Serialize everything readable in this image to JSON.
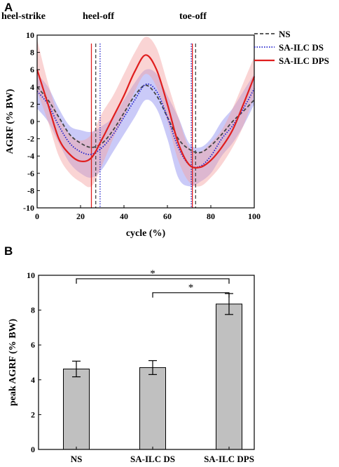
{
  "chart_data": [
    {
      "panel_label": "A",
      "type": "line",
      "xlabel": "cycle (%)",
      "ylabel": "AGRF (% BW)",
      "xlim": [
        0,
        100
      ],
      "ylim": [
        -10,
        10
      ],
      "xticks": [
        0,
        20,
        40,
        60,
        80,
        100
      ],
      "yticks": [
        -10,
        -8,
        -6,
        -4,
        -2,
        0,
        2,
        4,
        6,
        8,
        10
      ],
      "x": [
        0,
        5,
        10,
        15,
        20,
        25,
        30,
        35,
        40,
        45,
        50,
        55,
        60,
        65,
        70,
        75,
        80,
        85,
        90,
        95,
        100
      ],
      "series": [
        {
          "name": "NS",
          "color": "#444444",
          "style": "dashed",
          "values": [
            4.0,
            2.5,
            0.5,
            -1.5,
            -2.5,
            -3.0,
            -2.5,
            -1.0,
            1.0,
            3.0,
            4.2,
            3.0,
            0.5,
            -2.0,
            -3.2,
            -3.6,
            -2.8,
            -1.5,
            0.0,
            1.2,
            2.5
          ],
          "band_lower": [
            2.5,
            1.0,
            -1.0,
            -3.0,
            -4.2,
            -4.8,
            -4.0,
            -2.5,
            -0.5,
            1.5,
            2.8,
            1.5,
            -1.0,
            -3.5,
            -4.8,
            -5.2,
            -4.4,
            -3.0,
            -1.5,
            -0.2,
            1.0
          ],
          "band_upper": [
            5.5,
            4.0,
            2.0,
            0.0,
            -0.8,
            -1.2,
            -1.0,
            0.5,
            2.5,
            4.5,
            5.6,
            4.5,
            2.0,
            -0.5,
            -1.6,
            -2.0,
            -1.2,
            0.0,
            1.5,
            2.6,
            4.0
          ]
        },
        {
          "name": "SA-ILC DS",
          "color": "#2222cc",
          "style": "dotted",
          "band_color": "#8a8af0",
          "values": [
            3.5,
            2.0,
            -0.5,
            -2.5,
            -3.5,
            -3.8,
            -3.0,
            -1.5,
            0.5,
            2.5,
            4.3,
            3.5,
            0.5,
            -3.0,
            -5.0,
            -5.2,
            -4.0,
            -2.0,
            -0.5,
            1.5,
            3.8
          ],
          "band_lower": [
            1.5,
            0.0,
            -2.5,
            -4.8,
            -6.0,
            -6.5,
            -5.5,
            -3.5,
            -1.5,
            0.5,
            2.5,
            1.5,
            -2.0,
            -6.5,
            -7.5,
            -7.0,
            -6.0,
            -4.0,
            -2.5,
            -0.5,
            2.0
          ],
          "band_upper": [
            5.5,
            4.0,
            1.5,
            -0.5,
            -1.0,
            -1.2,
            -0.5,
            0.5,
            2.5,
            4.5,
            6.0,
            5.5,
            3.0,
            0.5,
            -2.5,
            -3.0,
            -2.0,
            0.0,
            1.5,
            3.5,
            5.5
          ]
        },
        {
          "name": "SA-ILC DPS",
          "color": "#e01e1e",
          "style": "solid",
          "band_color": "#f4a0a0",
          "values": [
            6.0,
            2.0,
            -2.0,
            -3.8,
            -4.6,
            -4.2,
            -2.0,
            0.5,
            3.0,
            5.8,
            7.7,
            6.0,
            2.0,
            -2.5,
            -5.0,
            -5.3,
            -4.5,
            -3.0,
            -1.0,
            2.0,
            5.2
          ],
          "band_lower": [
            3.5,
            0.0,
            -4.0,
            -6.0,
            -7.0,
            -7.5,
            -5.0,
            -2.0,
            0.5,
            3.5,
            5.5,
            4.0,
            0.0,
            -4.5,
            -7.0,
            -7.5,
            -6.5,
            -5.0,
            -3.0,
            -0.5,
            3.0
          ],
          "band_upper": [
            9.5,
            4.5,
            0.5,
            -1.5,
            -2.2,
            -1.5,
            1.0,
            3.0,
            5.5,
            8.0,
            9.8,
            8.5,
            4.5,
            0.5,
            -3.0,
            -3.5,
            -2.5,
            -1.0,
            1.5,
            4.5,
            7.5
          ]
        }
      ],
      "event_lines": [
        {
          "x": 25.0,
          "color": "#e01e1e",
          "style": "solid"
        },
        {
          "x": 27.0,
          "color": "#444444",
          "style": "dashed"
        },
        {
          "x": 29.0,
          "color": "#2222cc",
          "style": "dotted"
        },
        {
          "x": 71.0,
          "color": "#2222cc",
          "style": "dotted"
        },
        {
          "x": 71.5,
          "color": "#e01e1e",
          "style": "solid"
        },
        {
          "x": 73.0,
          "color": "#444444",
          "style": "dashed"
        }
      ],
      "annotations": [
        "heel-strike",
        "heel-off",
        "toe-off"
      ],
      "legend_position": "top-right"
    },
    {
      "panel_label": "B",
      "type": "bar",
      "ylabel": "peak AGRF (% BW)",
      "ylim": [
        0,
        10
      ],
      "yticks": [
        0,
        2,
        4,
        6,
        8,
        10
      ],
      "categories": [
        "NS",
        "SA-ILC DS",
        "SA-ILC DPS"
      ],
      "values": [
        4.62,
        4.7,
        8.35
      ],
      "errors": [
        0.45,
        0.4,
        0.6
      ],
      "bar_color": "#c0c0c0",
      "significance": [
        {
          "from": 0,
          "to": 2,
          "y": 9.8,
          "label": "*"
        },
        {
          "from": 1,
          "to": 2,
          "y": 9.0,
          "label": "*"
        }
      ]
    }
  ]
}
